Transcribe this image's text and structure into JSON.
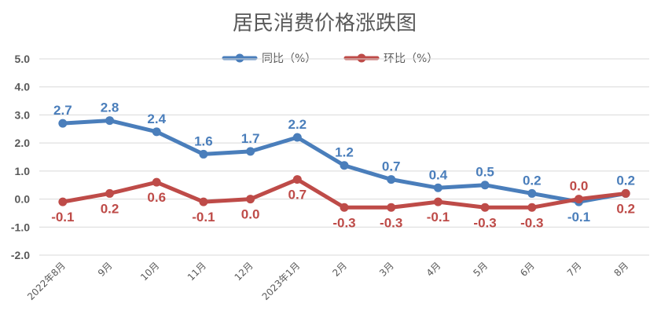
{
  "chart_data": {
    "type": "line",
    "title": "居民消费价格涨跌图",
    "categories": [
      "2022年8月",
      "9月",
      "10月",
      "11月",
      "12月",
      "2023年1月",
      "2月",
      "3月",
      "4月",
      "5月",
      "6月",
      "7月",
      "8月"
    ],
    "ylim": [
      -2.0,
      5.0
    ],
    "yticks": [
      "5.0",
      "4.0",
      "3.0",
      "2.0",
      "1.0",
      "0.0",
      "-1.0",
      "-2.0"
    ],
    "grid": true,
    "legend": "top",
    "series": [
      {
        "name": "同比（%）",
        "color": "#4a7ebb",
        "values": [
          2.7,
          2.8,
          2.4,
          1.6,
          1.7,
          2.2,
          1.2,
          0.7,
          0.4,
          0.5,
          0.2,
          -0.1,
          0.2
        ],
        "labels": [
          "2.7",
          "2.8",
          "2.4",
          "1.6",
          "1.7",
          "2.2",
          "1.2",
          "0.7",
          "0.4",
          "0.5",
          "0.2",
          "-0.1",
          "0.2"
        ],
        "label_side": [
          "above",
          "above",
          "above",
          "above",
          "above",
          "above",
          "above",
          "above",
          "above",
          "above",
          "above",
          "below",
          "above"
        ]
      },
      {
        "name": "环比（%）",
        "color": "#be4b48",
        "values": [
          -0.1,
          0.2,
          0.6,
          -0.1,
          0.0,
          0.7,
          -0.3,
          -0.3,
          -0.1,
          -0.3,
          -0.3,
          0.0,
          0.2
        ],
        "labels": [
          "-0.1",
          "0.2",
          "0.6",
          "-0.1",
          "0.0",
          "0.7",
          "-0.3",
          "-0.3",
          "-0.1",
          "-0.3",
          "-0.3",
          "0.0",
          "0.2"
        ],
        "label_side": [
          "below",
          "below",
          "below",
          "below",
          "below",
          "below",
          "below",
          "below",
          "below",
          "below",
          "below",
          "above",
          "below"
        ]
      }
    ]
  }
}
